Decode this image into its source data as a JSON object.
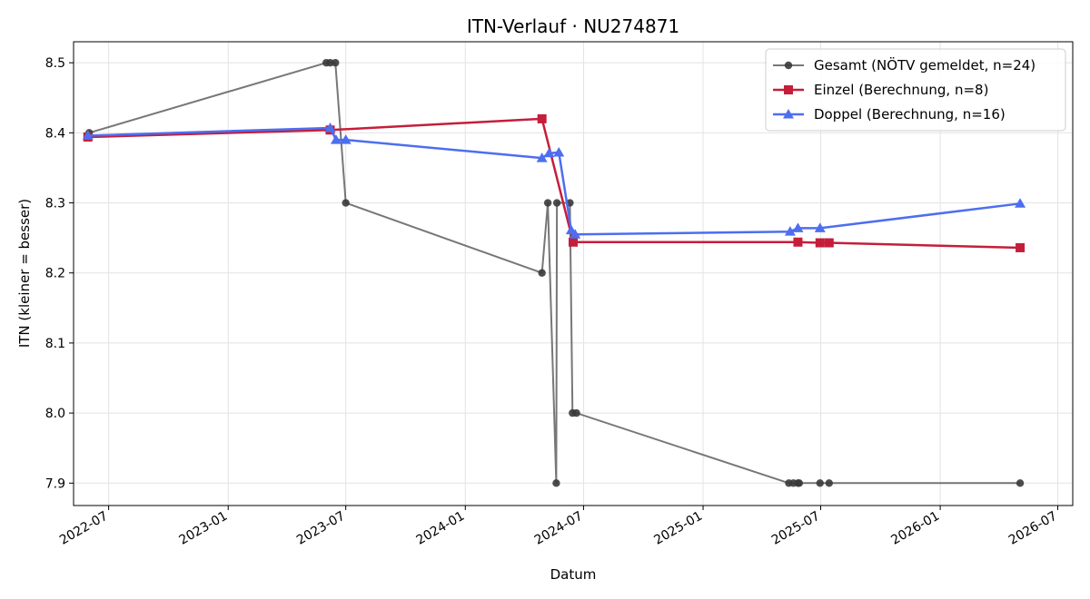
{
  "chart_data": {
    "type": "line",
    "title": "ITN-Verlauf · NU274871",
    "xlabel": "Datum",
    "ylabel": "ITN  (kleiner = besser)",
    "x_ticks": [
      "2022-07",
      "2023-01",
      "2023-07",
      "2024-01",
      "2024-07",
      "2025-01",
      "2025-07",
      "2026-01",
      "2026-07"
    ],
    "y_ticks": [
      "7.9",
      "8.0",
      "8.1",
      "8.2",
      "8.3",
      "8.4",
      "8.5"
    ],
    "ylim": [
      7.868,
      8.53
    ],
    "xlim": [
      "2022-05-08",
      "2026-07-24"
    ],
    "grid": true,
    "legend": "top-right",
    "series": [
      {
        "name": "Gesamt (NÖTV gemeldet, n=24)",
        "color": "#555555",
        "marker": "circle",
        "points": [
          {
            "x": "2022-06-01",
            "y": 8.4
          },
          {
            "x": "2023-06-01",
            "y": 8.5
          },
          {
            "x": "2023-06-07",
            "y": 8.5
          },
          {
            "x": "2023-06-15",
            "y": 8.5
          },
          {
            "x": "2023-07-01",
            "y": 8.3
          },
          {
            "x": "2024-04-28",
            "y": 8.2
          },
          {
            "x": "2024-05-07",
            "y": 8.3
          },
          {
            "x": "2024-05-20",
            "y": 7.9
          },
          {
            "x": "2024-05-21",
            "y": 8.3
          },
          {
            "x": "2024-06-10",
            "y": 8.3
          },
          {
            "x": "2024-06-14",
            "y": 8.0
          },
          {
            "x": "2024-06-20",
            "y": 8.0
          },
          {
            "x": "2025-05-13",
            "y": 7.9
          },
          {
            "x": "2025-05-20",
            "y": 7.9
          },
          {
            "x": "2025-05-27",
            "y": 7.9
          },
          {
            "x": "2025-05-29",
            "y": 7.9
          },
          {
            "x": "2025-06-30",
            "y": 7.9
          },
          {
            "x": "2025-07-14",
            "y": 7.9
          },
          {
            "x": "2026-05-04",
            "y": 7.9
          }
        ]
      },
      {
        "name": "Einzel (Berechnung, n=8)",
        "color": "#c41e3a",
        "marker": "square",
        "points": [
          {
            "x": "2022-05-30",
            "y": 8.394
          },
          {
            "x": "2023-06-07",
            "y": 8.404
          },
          {
            "x": "2024-04-28",
            "y": 8.42
          },
          {
            "x": "2024-06-15",
            "y": 8.244
          },
          {
            "x": "2025-05-27",
            "y": 8.244
          },
          {
            "x": "2025-06-30",
            "y": 8.243
          },
          {
            "x": "2025-07-14",
            "y": 8.243
          },
          {
            "x": "2026-05-04",
            "y": 8.236
          }
        ]
      },
      {
        "name": "Doppel (Berechnung, n=16)",
        "color": "#4d6ef0",
        "marker": "triangle",
        "points": [
          {
            "x": "2022-05-30",
            "y": 8.396
          },
          {
            "x": "2023-06-07",
            "y": 8.407
          },
          {
            "x": "2023-06-16",
            "y": 8.39
          },
          {
            "x": "2023-07-01",
            "y": 8.39
          },
          {
            "x": "2024-04-28",
            "y": 8.364
          },
          {
            "x": "2024-05-09",
            "y": 8.371
          },
          {
            "x": "2024-05-24",
            "y": 8.372
          },
          {
            "x": "2024-06-12",
            "y": 8.261
          },
          {
            "x": "2024-06-18",
            "y": 8.255
          },
          {
            "x": "2025-05-15",
            "y": 8.259
          },
          {
            "x": "2025-05-27",
            "y": 8.264
          },
          {
            "x": "2025-06-30",
            "y": 8.264
          },
          {
            "x": "2026-05-04",
            "y": 8.299
          }
        ]
      }
    ]
  }
}
